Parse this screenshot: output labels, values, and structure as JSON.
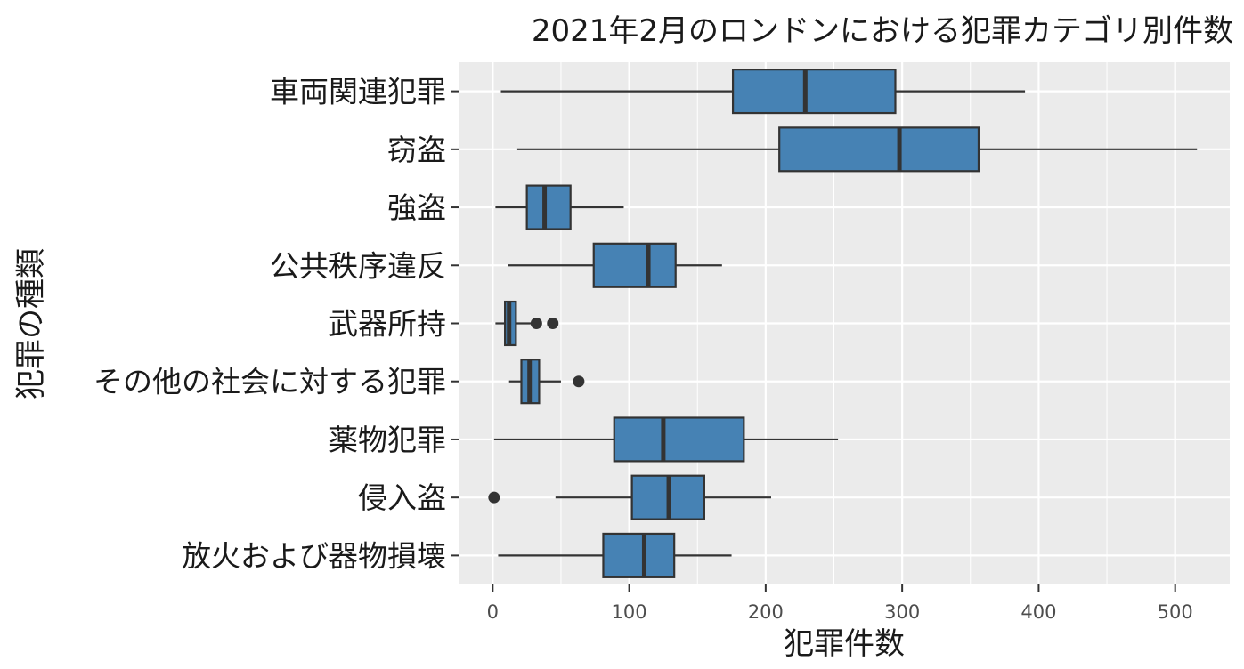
{
  "chart_data": {
    "type": "boxplot",
    "orientation": "horizontal",
    "title": "2021年2月のロンドンにおける犯罪カテゴリ別件数",
    "xlabel": "犯罪件数",
    "ylabel": "犯罪の種類",
    "xlim": [
      -25,
      540
    ],
    "xticks": [
      0,
      100,
      200,
      300,
      400,
      500
    ],
    "xtick_labels": [
      "0",
      "100",
      "200",
      "300",
      "400",
      "500"
    ],
    "grid": true,
    "box_color": "#4682b4",
    "outline_color": "#333333",
    "panel_background": "#ebebeb",
    "categories": [
      {
        "label": "車両関連犯罪",
        "whisker_low": 6,
        "q1": 176,
        "median": 229,
        "q3": 295,
        "whisker_high": 390,
        "outliers": []
      },
      {
        "label": "窃盗",
        "whisker_low": 18,
        "q1": 210,
        "median": 298,
        "q3": 356,
        "whisker_high": 516,
        "outliers": []
      },
      {
        "label": "強盗",
        "whisker_low": 2,
        "q1": 25,
        "median": 38,
        "q3": 57,
        "whisker_high": 96,
        "outliers": []
      },
      {
        "label": "公共秩序違反",
        "whisker_low": 11,
        "q1": 74,
        "median": 114,
        "q3": 134,
        "whisker_high": 168,
        "outliers": []
      },
      {
        "label": "武器所持",
        "whisker_low": 2,
        "q1": 9,
        "median": 12,
        "q3": 17,
        "whisker_high": 28,
        "outliers": [
          32,
          44
        ]
      },
      {
        "label": "その他の社会に対する犯罪",
        "whisker_low": 12,
        "q1": 21,
        "median": 27,
        "q3": 34,
        "whisker_high": 50,
        "outliers": [
          63
        ]
      },
      {
        "label": "薬物犯罪",
        "whisker_low": 1,
        "q1": 89,
        "median": 125,
        "q3": 184,
        "whisker_high": 253,
        "outliers": []
      },
      {
        "label": "侵入盗",
        "whisker_low": 46,
        "q1": 102,
        "median": 129,
        "q3": 155,
        "whisker_high": 204,
        "outliers": [
          1
        ]
      },
      {
        "label": "放火および器物損壊",
        "whisker_low": 4,
        "q1": 81,
        "median": 111,
        "q3": 133,
        "whisker_high": 175,
        "outliers": []
      }
    ]
  }
}
